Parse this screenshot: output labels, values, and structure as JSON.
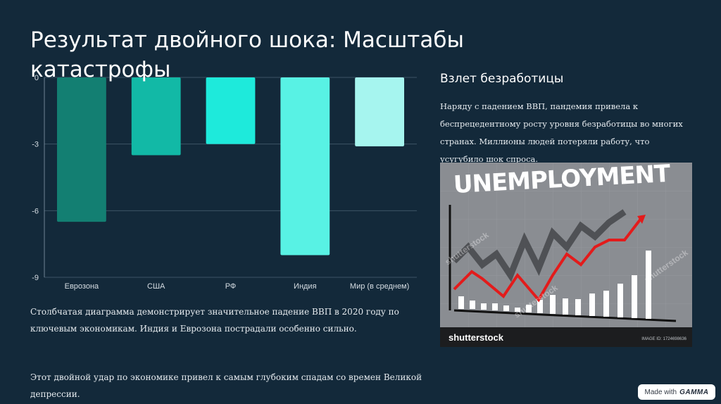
{
  "title": "Результат двойного шока: Масштабы катастрофы",
  "chart_data": {
    "type": "bar",
    "categories": [
      "Еврозона",
      "США",
      "РФ",
      "Индия",
      "Мир (в среднем)"
    ],
    "values": [
      -6.5,
      -3.5,
      -3.0,
      -8.0,
      -3.1
    ],
    "ylim": [
      -9,
      0
    ],
    "yticks": [
      0,
      -3,
      -6,
      -9
    ],
    "grid": true,
    "colors": [
      "#137f72",
      "#12b9a6",
      "#1eeadb",
      "#58f2e4",
      "#a6f5ef"
    ]
  },
  "caption1": "Столбчатая диаграмма демонстрирует значительное падение ВВП в 2020 году по ключевым экономикам. Индия и Еврозона пострадали особенно сильно.",
  "caption2": "Этот двойной удар по экономике привел к самым глубоким спадам со времен Великой депрессии.",
  "side": {
    "title": "Взлет безработицы",
    "text": "Наряду с падением ВВП, пандемия привела к беспрецедентному росту уровня безработицы во многих странах. Миллионы людей потеряли работу, что усугубило шок спроса."
  },
  "stock_image": {
    "headline": "UNEMPLOYMENT",
    "logo": "shutterstock",
    "watermark": "shutterstock",
    "image_id": "IMAGE ID: 1724698636"
  },
  "badge": {
    "prefix": "Made with",
    "brand": "GAMMA"
  }
}
